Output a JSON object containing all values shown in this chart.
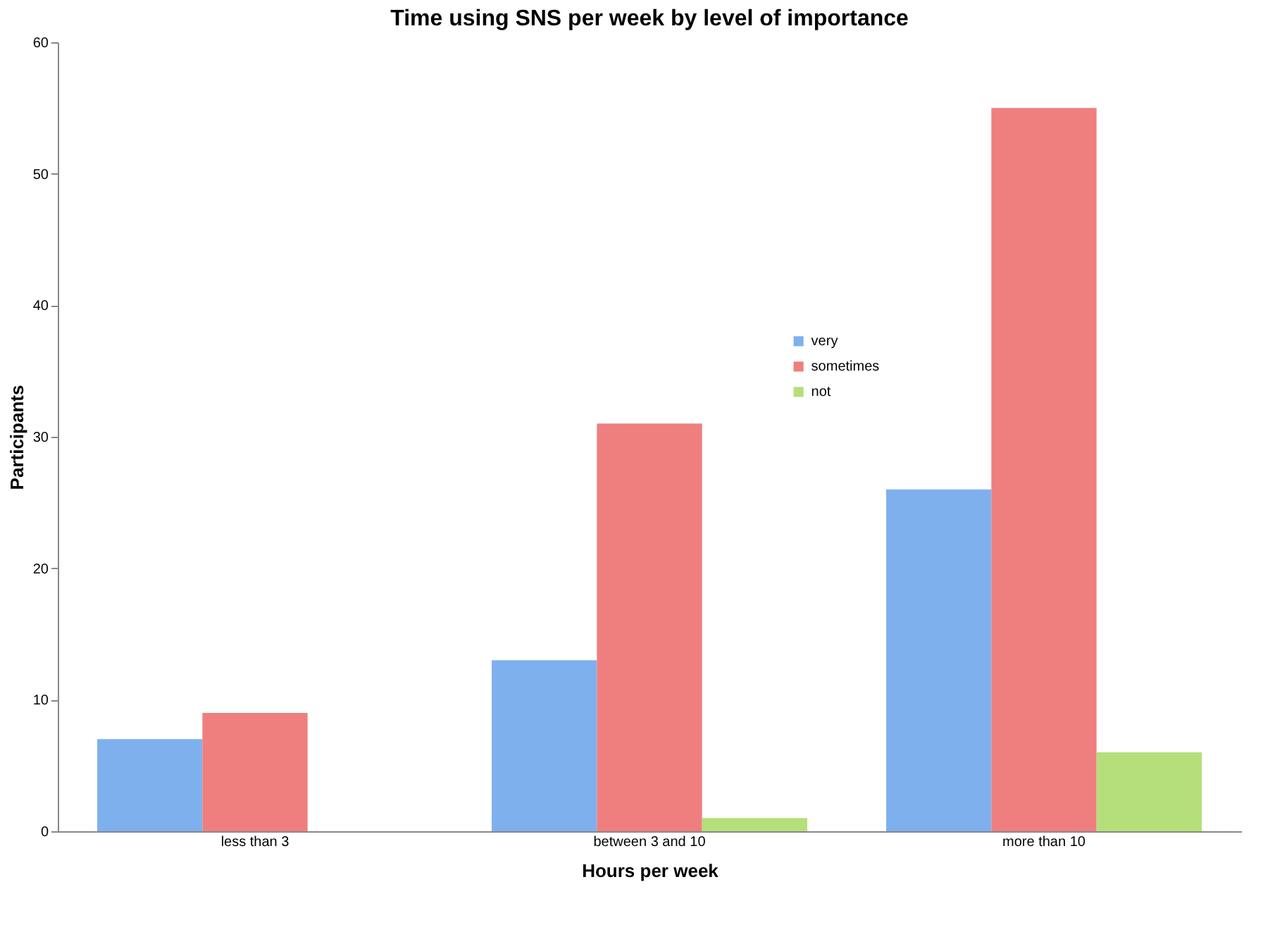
{
  "chart_data": {
    "type": "bar",
    "title": "Time using SNS per week by level of importance",
    "xlabel": "Hours per week",
    "ylabel": "Participants",
    "categories": [
      "less than 3",
      "between 3 and 10",
      "more than 10"
    ],
    "series": [
      {
        "name": "very",
        "color": "#7fb0ee",
        "values": [
          7,
          13,
          26
        ]
      },
      {
        "name": "sometimes",
        "color": "#ef7f7f",
        "values": [
          9,
          31,
          55
        ]
      },
      {
        "name": "not",
        "color": "#b5df7a",
        "values": [
          0,
          1,
          6
        ]
      }
    ],
    "ylim": [
      0,
      60
    ],
    "yticks": [
      0,
      10,
      20,
      30,
      40,
      50,
      60
    ],
    "grid": false,
    "legend": "right"
  }
}
